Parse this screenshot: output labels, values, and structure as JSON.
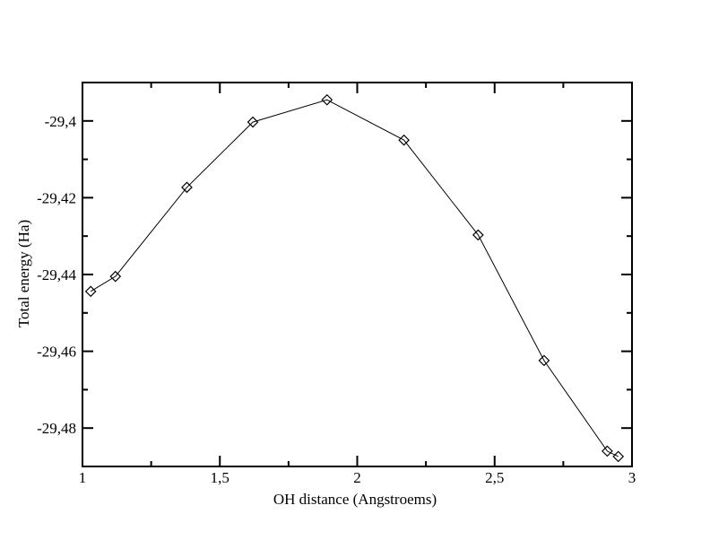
{
  "page": {
    "background": "#ffffff",
    "foreground": "#000000"
  },
  "chart_data": {
    "type": "line",
    "title": "",
    "xlabel": "OH distance (Angstroems)",
    "ylabel": "Total energy (Ha)",
    "decimal_separator": ",",
    "xlim": [
      1,
      3
    ],
    "ylim": [
      -29.49,
      -29.39
    ],
    "grid": false,
    "legend": null,
    "x_major_ticks": [
      1,
      1.5,
      2,
      2.5,
      3
    ],
    "x_major_tick_labels": [
      "1",
      "1,5",
      "2",
      "2,5",
      "3"
    ],
    "x_minor_ticks": [
      1.25,
      1.75,
      2.25,
      2.75
    ],
    "y_major_ticks": [
      -29.48,
      -29.46,
      -29.44,
      -29.42,
      -29.4
    ],
    "y_major_tick_labels": [
      "-29,48",
      "-29,46",
      "-29,44",
      "-29,42",
      "-29,4"
    ],
    "y_minor_ticks": [
      -29.47,
      -29.45,
      -29.43,
      -29.41
    ],
    "series": [
      {
        "name": "total-energy-vs-oh-distance",
        "marker": "open-diamond",
        "marker_size": 5.5,
        "color": "#000000",
        "x": [
          1.03,
          1.12,
          1.38,
          1.62,
          1.89,
          2.17,
          2.44,
          2.68,
          2.91,
          2.95
        ],
        "y": [
          -29.4444,
          -29.4405,
          -29.4173,
          -29.4003,
          -29.3945,
          -29.405,
          -29.4297,
          -29.4624,
          -29.486,
          -29.4874
        ]
      }
    ]
  }
}
